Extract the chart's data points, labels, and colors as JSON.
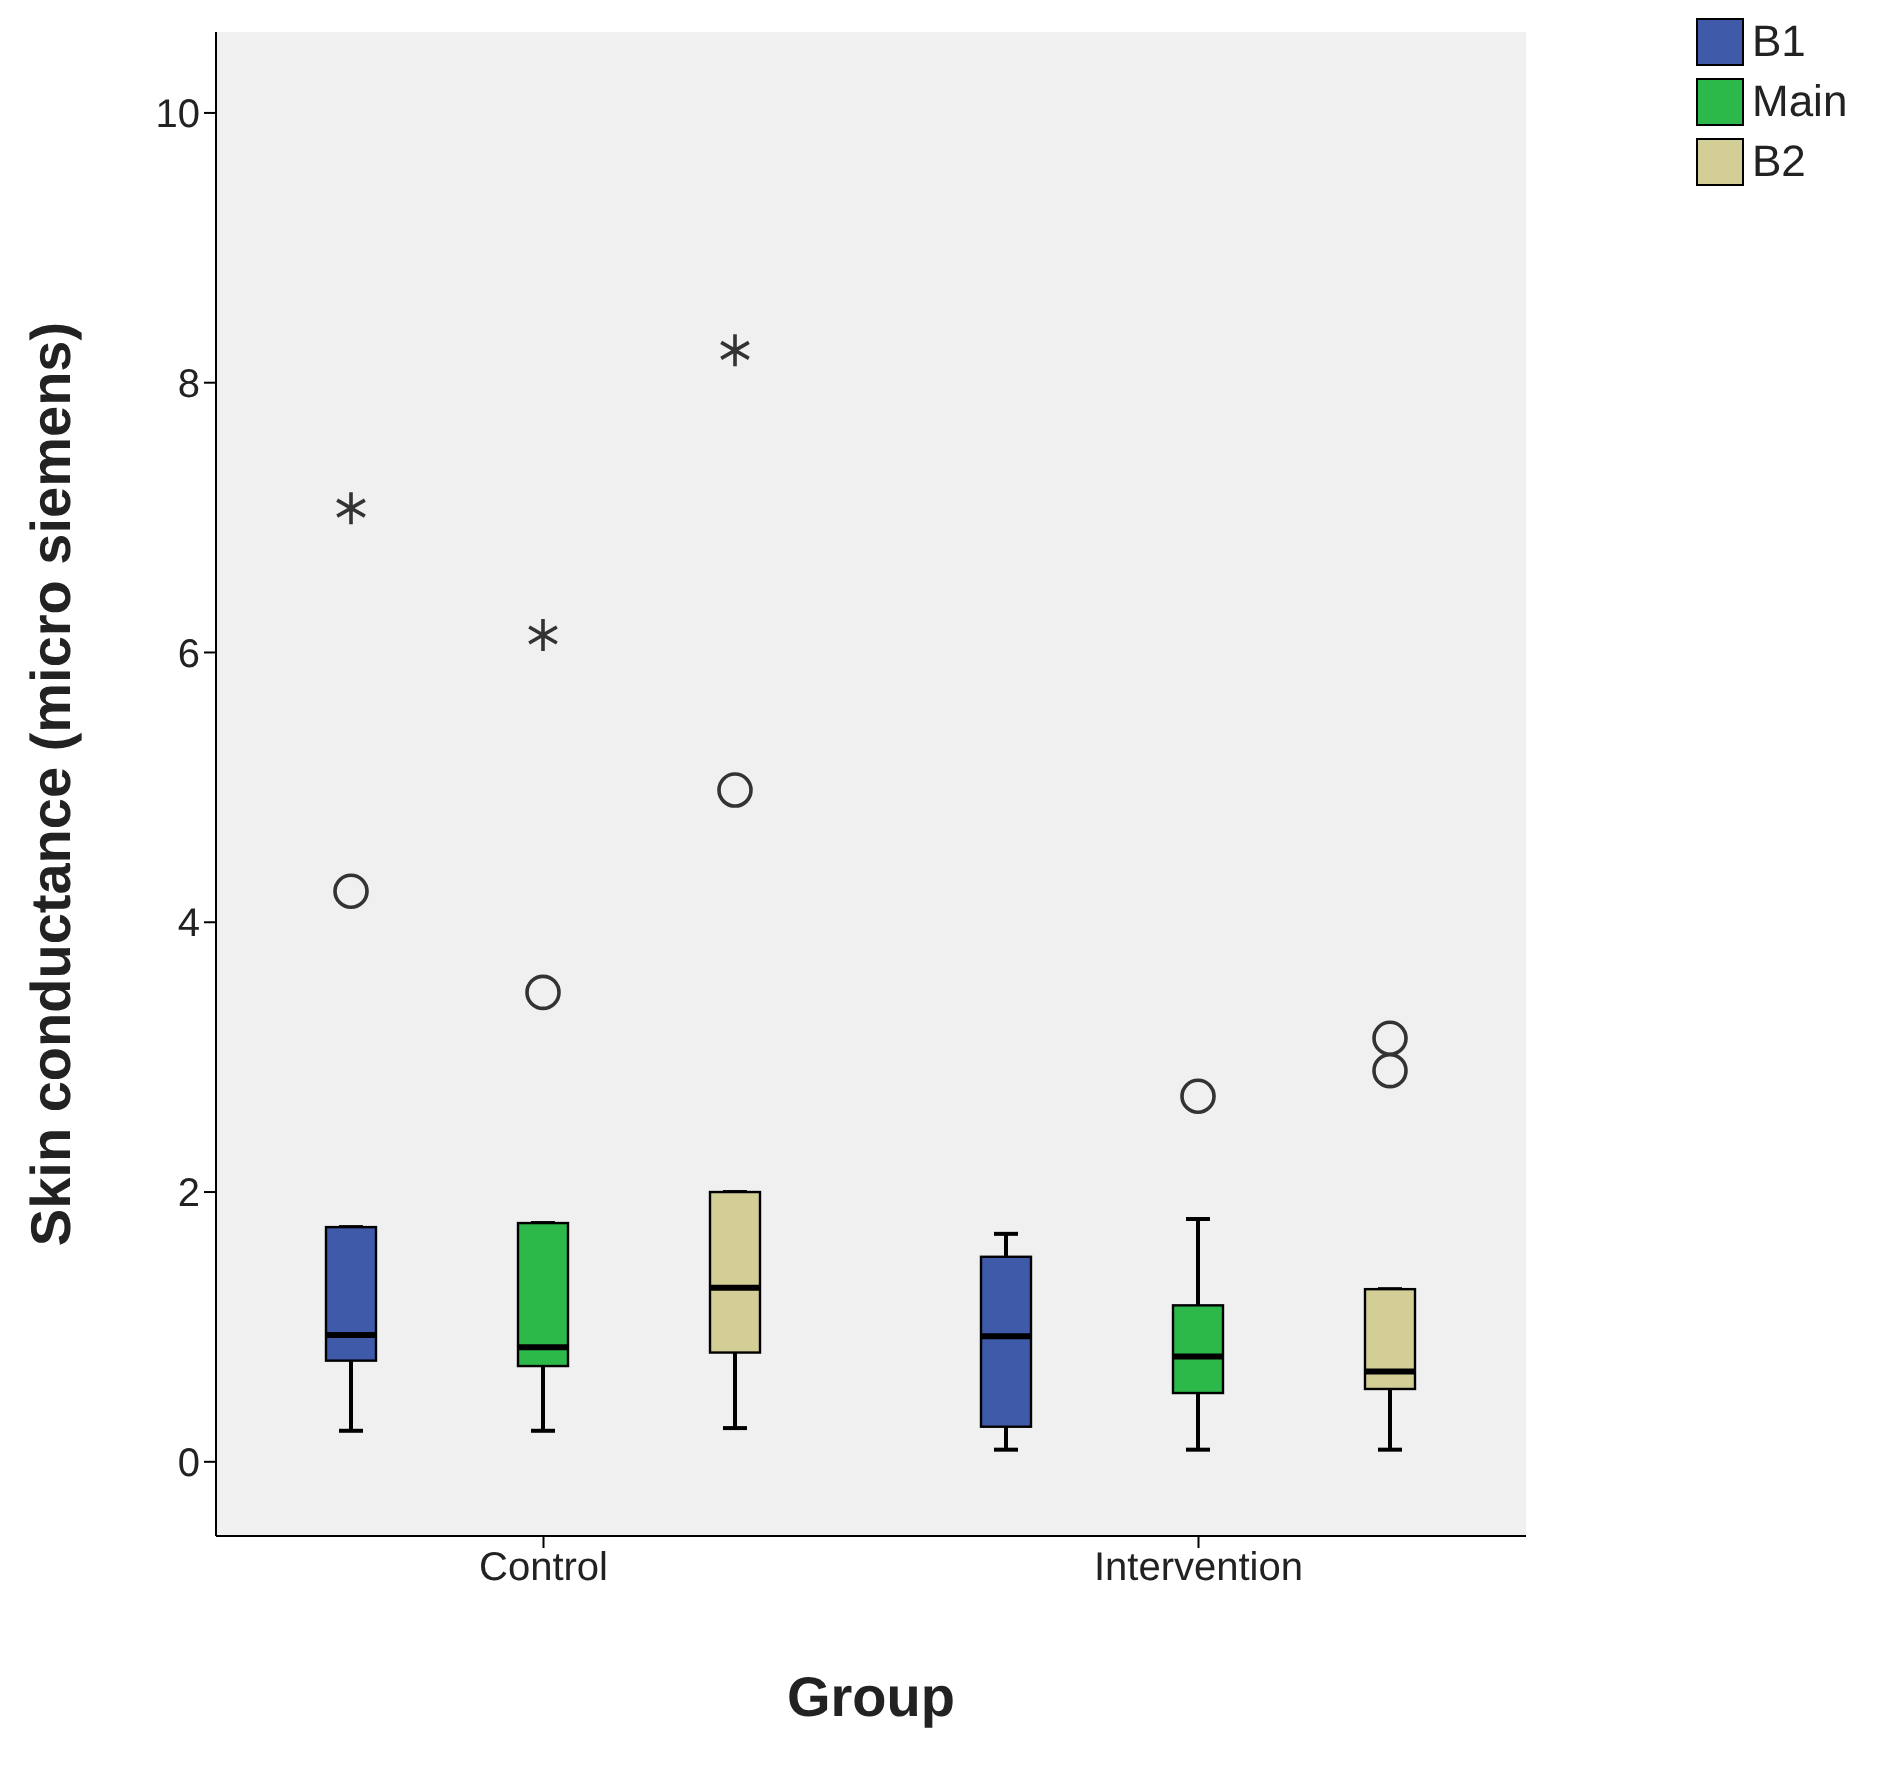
{
  "chart_data": {
    "type": "box",
    "xlabel": "Group",
    "ylabel": "Skin conductance (micro siemens)",
    "categories": [
      "Control",
      "Intervention"
    ],
    "ylim": [
      -0.55,
      10.6
    ],
    "yticks": [
      0,
      2,
      4,
      6,
      8,
      10
    ],
    "legend": "top right",
    "series": [
      {
        "name": "B1",
        "color": "#3f5aa8",
        "boxes": [
          {
            "low": 0.23,
            "q1": 0.75,
            "median": 0.94,
            "q3": 1.74,
            "high": 1.74,
            "outliers": [
              4.23,
              7.07
            ]
          },
          {
            "low": 0.09,
            "q1": 0.26,
            "median": 0.93,
            "q3": 1.52,
            "high": 1.69
          }
        ]
      },
      {
        "name": "Main",
        "color": "#2db84a",
        "boxes": [
          {
            "low": 0.23,
            "q1": 0.71,
            "median": 0.85,
            "q3": 1.77,
            "high": 1.77,
            "outliers": [
              3.48,
              6.13
            ]
          },
          {
            "low": 0.09,
            "q1": 0.51,
            "median": 0.78,
            "q3": 1.16,
            "high": 1.8,
            "outliers": [
              2.71
            ]
          }
        ]
      },
      {
        "name": "B2",
        "color": "#d3ce96",
        "boxes": [
          {
            "low": 0.25,
            "q1": 0.81,
            "median": 1.29,
            "q3": 2.0,
            "high": 2.0,
            "outliers": [
              4.98,
              8.24
            ]
          },
          {
            "low": 0.09,
            "q1": 0.54,
            "median": 0.67,
            "q3": 1.28,
            "high": 1.28,
            "outliers": [
              2.9,
              3.14
            ]
          }
        ]
      }
    ]
  }
}
